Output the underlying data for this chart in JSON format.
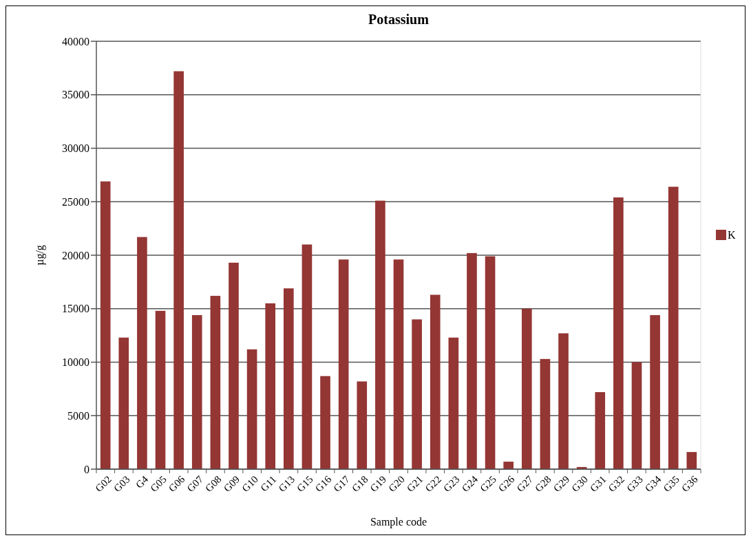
{
  "chart_data": {
    "type": "bar",
    "title": "Potassium",
    "xlabel": "Sample code",
    "ylabel": "µg/g",
    "categories": [
      "G02",
      "G03",
      "G4",
      "G05",
      "G06",
      "G07",
      "G08",
      "G09",
      "G10",
      "G11",
      "G13",
      "G15",
      "G16",
      "G17",
      "G18",
      "G19",
      "G20",
      "G21",
      "G22",
      "G23",
      "G24",
      "G25",
      "G26",
      "G27",
      "G28",
      "G29",
      "G30",
      "G31",
      "G32",
      "G33",
      "G34",
      "G35",
      "G36"
    ],
    "series": [
      {
        "name": "K",
        "color": "#943634",
        "values": [
          26900,
          12300,
          21700,
          14800,
          37200,
          14400,
          16200,
          19300,
          11200,
          15500,
          16900,
          21000,
          8700,
          19600,
          8200,
          25100,
          19600,
          14000,
          16300,
          12300,
          20200,
          19900,
          700,
          15000,
          10300,
          12700,
          200,
          7200,
          25400,
          10000,
          14400,
          26400,
          1600
        ]
      }
    ],
    "ylim": [
      0,
      40000
    ],
    "yticks": [
      0,
      5000,
      10000,
      15000,
      20000,
      25000,
      30000,
      35000,
      40000
    ],
    "grid": "y",
    "legend": "right"
  }
}
